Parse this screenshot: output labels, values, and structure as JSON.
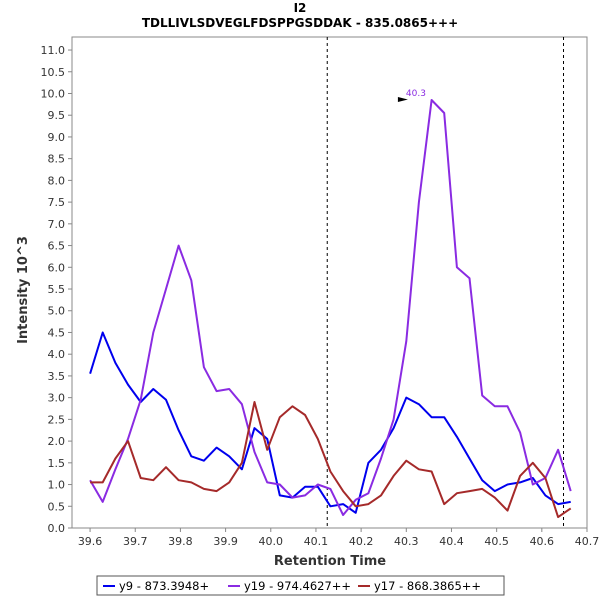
{
  "chart_data": {
    "type": "line",
    "title": "I2",
    "subtitle": "TDLLIVLSDVEGLFDSPPGSDDAK - 835.0865+++",
    "xlabel": "Retention Time",
    "ylabel": "Intensity 10^3",
    "xlim": [
      39.56,
      40.7
    ],
    "ylim": [
      0,
      11.3
    ],
    "xticks": [
      39.6,
      39.7,
      39.8,
      39.9,
      40.0,
      40.1,
      40.2,
      40.3,
      40.4,
      40.5,
      40.6,
      40.7
    ],
    "xtick_labels": [
      "39.6",
      "39.7",
      "39.8",
      "39.9",
      "40.0",
      "40.1",
      "40.2",
      "40.3",
      "40.4",
      "40.5",
      "40.6",
      "40.7"
    ],
    "yticks": [
      0,
      0.5,
      1,
      1.5,
      2,
      2.5,
      3,
      3.5,
      4,
      4.5,
      5,
      5.5,
      6,
      6.5,
      7,
      7.5,
      8,
      8.5,
      9,
      9.5,
      10,
      10.5,
      11
    ],
    "ytick_labels": [
      "0.0",
      "0.5",
      "1.0",
      "1.5",
      "2.0",
      "2.5",
      "3.0",
      "3.5",
      "4.0",
      "4.5",
      "5.0",
      "5.5",
      "6.0",
      "6.5",
      "7.0",
      "7.5",
      "8.0",
      "8.5",
      "9.0",
      "9.5",
      "10.0",
      "10.5",
      "11.0"
    ],
    "vlines": [
      40.125,
      40.648
    ],
    "x": [
      39.6,
      39.628,
      39.656,
      39.684,
      39.712,
      39.74,
      39.768,
      39.796,
      39.824,
      39.852,
      39.88,
      39.908,
      39.936,
      39.964,
      39.992,
      40.02,
      40.048,
      40.076,
      40.104,
      40.132,
      40.16,
      40.188,
      40.216,
      40.244,
      40.272,
      40.3,
      40.328,
      40.356,
      40.384,
      40.412,
      40.44,
      40.468,
      40.496,
      40.524,
      40.552,
      40.58,
      40.608,
      40.636,
      40.664
    ],
    "series": [
      {
        "name": "y9 - 873.3948+",
        "color": "#0000ee",
        "values": [
          3.55,
          4.5,
          3.8,
          3.3,
          2.9,
          3.2,
          2.95,
          2.25,
          1.65,
          1.55,
          1.85,
          1.65,
          1.35,
          2.3,
          2.05,
          0.75,
          0.7,
          0.95,
          0.95,
          0.5,
          0.55,
          0.35,
          1.5,
          1.8,
          2.3,
          3.0,
          2.85,
          2.55,
          2.55,
          2.1,
          1.6,
          1.1,
          0.85,
          1.0,
          1.05,
          1.15,
          0.75,
          0.55,
          0.6
        ]
      },
      {
        "name": "y19 - 974.4627++",
        "color": "#8a2be2",
        "values": [
          1.1,
          0.6,
          1.35,
          2.05,
          2.95,
          4.5,
          5.5,
          6.5,
          5.7,
          3.7,
          3.15,
          3.2,
          2.85,
          1.75,
          1.05,
          1.0,
          0.7,
          0.75,
          1.0,
          0.9,
          0.3,
          0.65,
          0.8,
          1.6,
          2.5,
          4.3,
          7.5,
          9.85,
          9.55,
          6.0,
          5.75,
          3.05,
          2.8,
          2.8,
          2.2,
          1.0,
          1.15,
          1.8,
          0.85
        ]
      },
      {
        "name": "y17 - 868.3865++",
        "color": "#a52a2a",
        "values": [
          1.05,
          1.05,
          1.6,
          2.0,
          1.15,
          1.1,
          1.4,
          1.1,
          1.05,
          0.9,
          0.85,
          1.05,
          1.5,
          2.9,
          1.8,
          2.55,
          2.8,
          2.6,
          2.05,
          1.3,
          0.85,
          0.5,
          0.55,
          0.75,
          1.2,
          1.55,
          1.35,
          1.3,
          0.55,
          0.8,
          0.85,
          0.9,
          0.7,
          0.4,
          1.2,
          1.5,
          1.15,
          0.25,
          0.45
        ]
      }
    ],
    "annotations": [
      {
        "text": "40.3",
        "x": 40.308,
        "y": 9.85,
        "color": "#8a2be2"
      }
    ],
    "legend_position": "bottom",
    "grid": false
  }
}
